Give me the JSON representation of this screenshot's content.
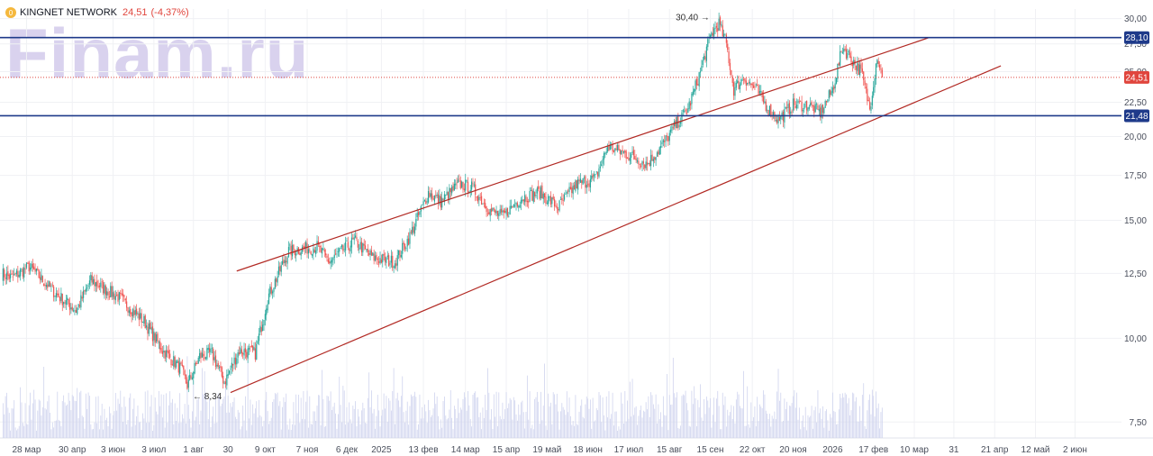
{
  "header": {
    "ticker": "KINGNET NETWORK",
    "price": "24,51",
    "change": "(-4,37%)",
    "coin_glyph": "0"
  },
  "watermark": "Finam.ru",
  "colors": {
    "up": "#26a69a",
    "down": "#ef5350",
    "volume": "#cfd3ee",
    "channel": "#b22a24",
    "level": "#1e3a8a",
    "last_price": "#e0453d",
    "grid": "#f0f1f4"
  },
  "chart_data": {
    "type": "candlestick",
    "yscale": "log",
    "ylim": [
      7.1,
      31.0
    ],
    "y_ticks": [
      "30,00",
      "27,50",
      "25,00",
      "22,50",
      "20,00",
      "17,50",
      "15,00",
      "12,50",
      "10,00",
      "7,50"
    ],
    "y_tick_values": [
      30,
      27.5,
      25,
      22.5,
      20,
      17.5,
      15,
      12.5,
      10,
      7.5
    ],
    "x_labels": [
      "28 мар",
      "30 апр",
      "3 июн",
      "3 июл",
      "1 авг",
      "30",
      "9 окт",
      "7 ноя",
      "6 дек",
      "2025",
      "13 фев",
      "14 мар",
      "15 апр",
      "19 май",
      "18 июн",
      "17 июл",
      "15 авг",
      "15 сен",
      "22 окт",
      "20 ноя",
      "2026",
      "17 фев",
      "10 мар",
      "31",
      "21 апр",
      "12 май",
      "2 июн"
    ],
    "x_label_index": [
      20,
      57,
      90,
      123,
      155,
      183,
      213,
      247,
      279,
      307,
      341,
      375,
      408,
      441,
      474,
      507,
      540,
      573,
      607,
      640,
      672,
      705,
      738,
      770,
      803,
      836,
      868
    ],
    "n_days": 900,
    "anchors": [
      {
        "i": 0,
        "price": 12.5
      },
      {
        "i": 8,
        "price": 12.3
      },
      {
        "i": 22,
        "price": 12.8
      },
      {
        "i": 45,
        "price": 11.6
      },
      {
        "i": 60,
        "price": 11.0
      },
      {
        "i": 72,
        "price": 12.2
      },
      {
        "i": 95,
        "price": 11.5
      },
      {
        "i": 115,
        "price": 10.6
      },
      {
        "i": 130,
        "price": 9.6
      },
      {
        "i": 145,
        "price": 9.0
      },
      {
        "i": 150,
        "price": 8.5
      },
      {
        "i": 160,
        "price": 9.4
      },
      {
        "i": 170,
        "price": 9.5
      },
      {
        "i": 180,
        "price": 8.6
      },
      {
        "i": 192,
        "price": 9.6
      },
      {
        "i": 205,
        "price": 9.5
      },
      {
        "i": 215,
        "price": 11.5
      },
      {
        "i": 232,
        "price": 13.5
      },
      {
        "i": 255,
        "price": 13.7
      },
      {
        "i": 265,
        "price": 13.0
      },
      {
        "i": 285,
        "price": 14.0
      },
      {
        "i": 300,
        "price": 13.2
      },
      {
        "i": 318,
        "price": 13.0
      },
      {
        "i": 330,
        "price": 14.2
      },
      {
        "i": 345,
        "price": 16.5
      },
      {
        "i": 355,
        "price": 16.0
      },
      {
        "i": 370,
        "price": 17.0
      },
      {
        "i": 380,
        "price": 16.8
      },
      {
        "i": 395,
        "price": 15.5
      },
      {
        "i": 405,
        "price": 15.2
      },
      {
        "i": 420,
        "price": 16.2
      },
      {
        "i": 435,
        "price": 16.5
      },
      {
        "i": 450,
        "price": 15.7
      },
      {
        "i": 465,
        "price": 17.0
      },
      {
        "i": 480,
        "price": 17.3
      },
      {
        "i": 490,
        "price": 19.3
      },
      {
        "i": 500,
        "price": 19.0
      },
      {
        "i": 515,
        "price": 18.5
      },
      {
        "i": 522,
        "price": 18.2
      },
      {
        "i": 535,
        "price": 19.5
      },
      {
        "i": 545,
        "price": 20.8
      },
      {
        "i": 555,
        "price": 22.0
      },
      {
        "i": 565,
        "price": 25.0
      },
      {
        "i": 570,
        "price": 27.0
      },
      {
        "i": 574,
        "price": 28.5
      },
      {
        "i": 580,
        "price": 29.5
      },
      {
        "i": 586,
        "price": 27.5
      },
      {
        "i": 592,
        "price": 23.5
      },
      {
        "i": 600,
        "price": 24.5
      },
      {
        "i": 610,
        "price": 23.5
      },
      {
        "i": 620,
        "price": 22.0
      },
      {
        "i": 628,
        "price": 21.2
      },
      {
        "i": 640,
        "price": 22.3
      },
      {
        "i": 652,
        "price": 22.3
      },
      {
        "i": 662,
        "price": 21.7
      },
      {
        "i": 672,
        "price": 23.5
      },
      {
        "i": 680,
        "price": 27.2
      },
      {
        "i": 688,
        "price": 26.0
      },
      {
        "i": 695,
        "price": 25.0
      },
      {
        "i": 702,
        "price": 22.0
      },
      {
        "i": 708,
        "price": 26.5
      },
      {
        "i": 712,
        "price": 24.51
      }
    ],
    "channel_upper": [
      {
        "i": 190,
        "price": 12.6
      },
      {
        "i": 750,
        "price": 28.1
      }
    ],
    "channel_lower": [
      {
        "i": 185,
        "price": 8.3
      },
      {
        "i": 808,
        "price": 25.5
      }
    ],
    "levels": [
      {
        "value": 28.1,
        "label": "28,10"
      },
      {
        "value": 21.48,
        "label": "21,48"
      }
    ],
    "last_price": {
      "value": 24.51,
      "label": "24,51"
    },
    "annotations": [
      {
        "label": "30,40",
        "i": 574,
        "price": 30.4,
        "arrow": "→"
      },
      {
        "label": "8,34",
        "i": 153,
        "price": 8.34,
        "arrow": "←"
      }
    ]
  }
}
